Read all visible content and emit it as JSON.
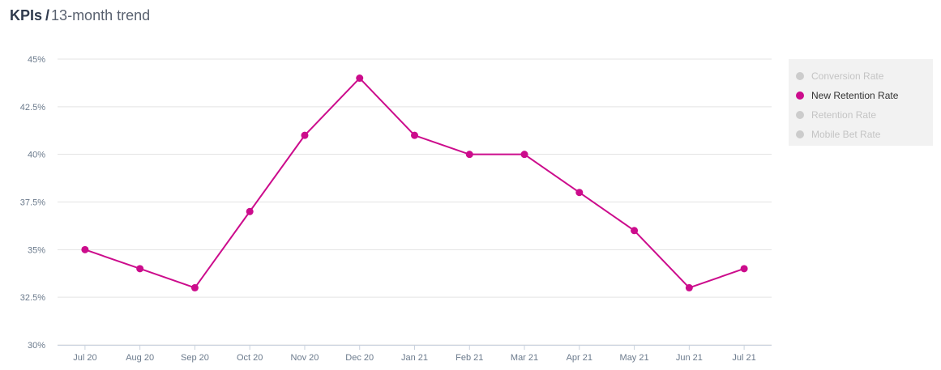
{
  "header": {
    "title": "KPIs",
    "separator": "/",
    "subtitle": "13-month trend"
  },
  "legend": {
    "items": [
      {
        "label": "Conversion Rate",
        "active": false
      },
      {
        "label": "New Retention Rate",
        "active": true
      },
      {
        "label": "Retention Rate",
        "active": false
      },
      {
        "label": "Mobile Bet Rate",
        "active": false
      }
    ]
  },
  "colors": {
    "series": "#cc0c8c",
    "inactive": "#cccccc",
    "grid": "#e3e3e3",
    "axis_text": "#6b7a8c"
  },
  "chart_data": {
    "type": "line",
    "categories": [
      "Jul 20",
      "Aug 20",
      "Sep 20",
      "Oct 20",
      "Nov 20",
      "Dec 20",
      "Jan 21",
      "Feb 21",
      "Mar 21",
      "Apr 21",
      "May 21",
      "Jun 21",
      "Jul 21"
    ],
    "series": [
      {
        "name": "New Retention Rate",
        "values": [
          35,
          34,
          33,
          37,
          41,
          44,
          41,
          40,
          40,
          38,
          36,
          33,
          34
        ]
      }
    ],
    "ylim": [
      30,
      45
    ],
    "yticks": [
      30,
      32.5,
      35,
      37.5,
      40,
      42.5,
      45
    ],
    "ytick_labels": [
      "30%",
      "32.5%",
      "35%",
      "37.5%",
      "40%",
      "42.5%",
      "45%"
    ],
    "grid": true,
    "legend_position": "right"
  }
}
